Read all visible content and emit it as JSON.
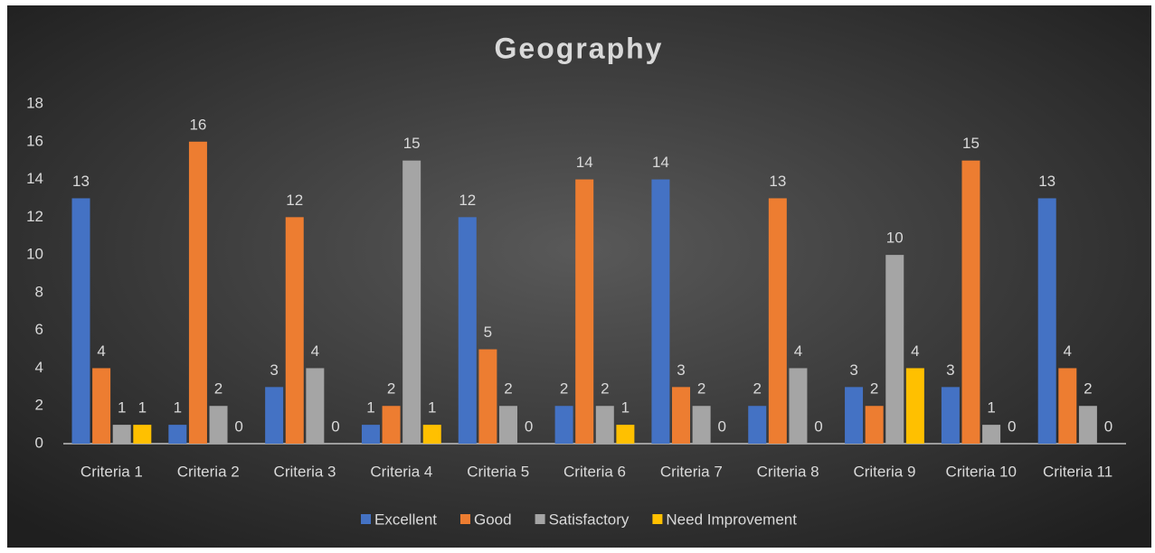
{
  "chart_data": {
    "type": "bar",
    "title": "Geography",
    "categories": [
      "Criteria 1",
      "Criteria 2",
      "Criteria 3",
      "Criteria 4",
      "Criteria 5",
      "Criteria 6",
      "Criteria 7",
      "Criteria 8",
      "Criteria 9",
      "Criteria 10",
      "Criteria 11"
    ],
    "series": [
      {
        "name": "Excellent",
        "color": "#4472c4",
        "values": [
          13,
          1,
          3,
          1,
          12,
          2,
          14,
          2,
          3,
          3,
          13
        ]
      },
      {
        "name": "Good",
        "color": "#ed7d31",
        "values": [
          4,
          16,
          12,
          2,
          5,
          14,
          3,
          13,
          2,
          15,
          4
        ]
      },
      {
        "name": "Satisfactory",
        "color": "#a5a5a5",
        "values": [
          1,
          2,
          4,
          15,
          2,
          2,
          2,
          4,
          10,
          1,
          2
        ]
      },
      {
        "name": "Need Improvement",
        "color": "#ffc000",
        "values": [
          1,
          0,
          0,
          1,
          0,
          1,
          0,
          0,
          4,
          0,
          0
        ]
      }
    ],
    "ylim": [
      0,
      18
    ],
    "yticks": [
      0,
      2,
      4,
      6,
      8,
      10,
      12,
      14,
      16,
      18
    ],
    "grid": false,
    "legend": "bottom"
  }
}
